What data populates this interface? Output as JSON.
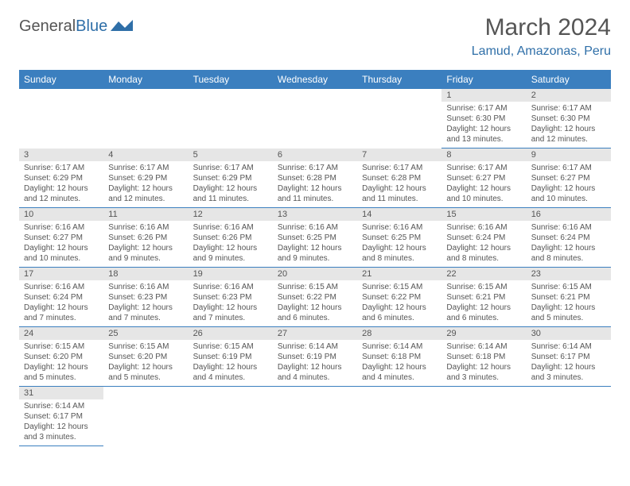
{
  "logo": {
    "text_a": "General",
    "text_b": "Blue"
  },
  "title": "March 2024",
  "location": "Lamud, Amazonas, Peru",
  "colors": {
    "header_bg": "#3b7fbf",
    "accent": "#2f6fa8",
    "day_num_bg": "#e6e6e6",
    "text": "#555555"
  },
  "day_headers": [
    "Sunday",
    "Monday",
    "Tuesday",
    "Wednesday",
    "Thursday",
    "Friday",
    "Saturday"
  ],
  "weeks": [
    [
      null,
      null,
      null,
      null,
      null,
      {
        "n": "1",
        "sr": "6:17 AM",
        "ss": "6:30 PM",
        "dl": "12 hours and 13 minutes."
      },
      {
        "n": "2",
        "sr": "6:17 AM",
        "ss": "6:30 PM",
        "dl": "12 hours and 12 minutes."
      }
    ],
    [
      {
        "n": "3",
        "sr": "6:17 AM",
        "ss": "6:29 PM",
        "dl": "12 hours and 12 minutes."
      },
      {
        "n": "4",
        "sr": "6:17 AM",
        "ss": "6:29 PM",
        "dl": "12 hours and 12 minutes."
      },
      {
        "n": "5",
        "sr": "6:17 AM",
        "ss": "6:29 PM",
        "dl": "12 hours and 11 minutes."
      },
      {
        "n": "6",
        "sr": "6:17 AM",
        "ss": "6:28 PM",
        "dl": "12 hours and 11 minutes."
      },
      {
        "n": "7",
        "sr": "6:17 AM",
        "ss": "6:28 PM",
        "dl": "12 hours and 11 minutes."
      },
      {
        "n": "8",
        "sr": "6:17 AM",
        "ss": "6:27 PM",
        "dl": "12 hours and 10 minutes."
      },
      {
        "n": "9",
        "sr": "6:17 AM",
        "ss": "6:27 PM",
        "dl": "12 hours and 10 minutes."
      }
    ],
    [
      {
        "n": "10",
        "sr": "6:16 AM",
        "ss": "6:27 PM",
        "dl": "12 hours and 10 minutes."
      },
      {
        "n": "11",
        "sr": "6:16 AM",
        "ss": "6:26 PM",
        "dl": "12 hours and 9 minutes."
      },
      {
        "n": "12",
        "sr": "6:16 AM",
        "ss": "6:26 PM",
        "dl": "12 hours and 9 minutes."
      },
      {
        "n": "13",
        "sr": "6:16 AM",
        "ss": "6:25 PM",
        "dl": "12 hours and 9 minutes."
      },
      {
        "n": "14",
        "sr": "6:16 AM",
        "ss": "6:25 PM",
        "dl": "12 hours and 8 minutes."
      },
      {
        "n": "15",
        "sr": "6:16 AM",
        "ss": "6:24 PM",
        "dl": "12 hours and 8 minutes."
      },
      {
        "n": "16",
        "sr": "6:16 AM",
        "ss": "6:24 PM",
        "dl": "12 hours and 8 minutes."
      }
    ],
    [
      {
        "n": "17",
        "sr": "6:16 AM",
        "ss": "6:24 PM",
        "dl": "12 hours and 7 minutes."
      },
      {
        "n": "18",
        "sr": "6:16 AM",
        "ss": "6:23 PM",
        "dl": "12 hours and 7 minutes."
      },
      {
        "n": "19",
        "sr": "6:16 AM",
        "ss": "6:23 PM",
        "dl": "12 hours and 7 minutes."
      },
      {
        "n": "20",
        "sr": "6:15 AM",
        "ss": "6:22 PM",
        "dl": "12 hours and 6 minutes."
      },
      {
        "n": "21",
        "sr": "6:15 AM",
        "ss": "6:22 PM",
        "dl": "12 hours and 6 minutes."
      },
      {
        "n": "22",
        "sr": "6:15 AM",
        "ss": "6:21 PM",
        "dl": "12 hours and 6 minutes."
      },
      {
        "n": "23",
        "sr": "6:15 AM",
        "ss": "6:21 PM",
        "dl": "12 hours and 5 minutes."
      }
    ],
    [
      {
        "n": "24",
        "sr": "6:15 AM",
        "ss": "6:20 PM",
        "dl": "12 hours and 5 minutes."
      },
      {
        "n": "25",
        "sr": "6:15 AM",
        "ss": "6:20 PM",
        "dl": "12 hours and 5 minutes."
      },
      {
        "n": "26",
        "sr": "6:15 AM",
        "ss": "6:19 PM",
        "dl": "12 hours and 4 minutes."
      },
      {
        "n": "27",
        "sr": "6:14 AM",
        "ss": "6:19 PM",
        "dl": "12 hours and 4 minutes."
      },
      {
        "n": "28",
        "sr": "6:14 AM",
        "ss": "6:18 PM",
        "dl": "12 hours and 4 minutes."
      },
      {
        "n": "29",
        "sr": "6:14 AM",
        "ss": "6:18 PM",
        "dl": "12 hours and 3 minutes."
      },
      {
        "n": "30",
        "sr": "6:14 AM",
        "ss": "6:17 PM",
        "dl": "12 hours and 3 minutes."
      }
    ],
    [
      {
        "n": "31",
        "sr": "6:14 AM",
        "ss": "6:17 PM",
        "dl": "12 hours and 3 minutes."
      },
      null,
      null,
      null,
      null,
      null,
      null
    ]
  ],
  "labels": {
    "sunrise": "Sunrise: ",
    "sunset": "Sunset: ",
    "daylight": "Daylight: "
  }
}
